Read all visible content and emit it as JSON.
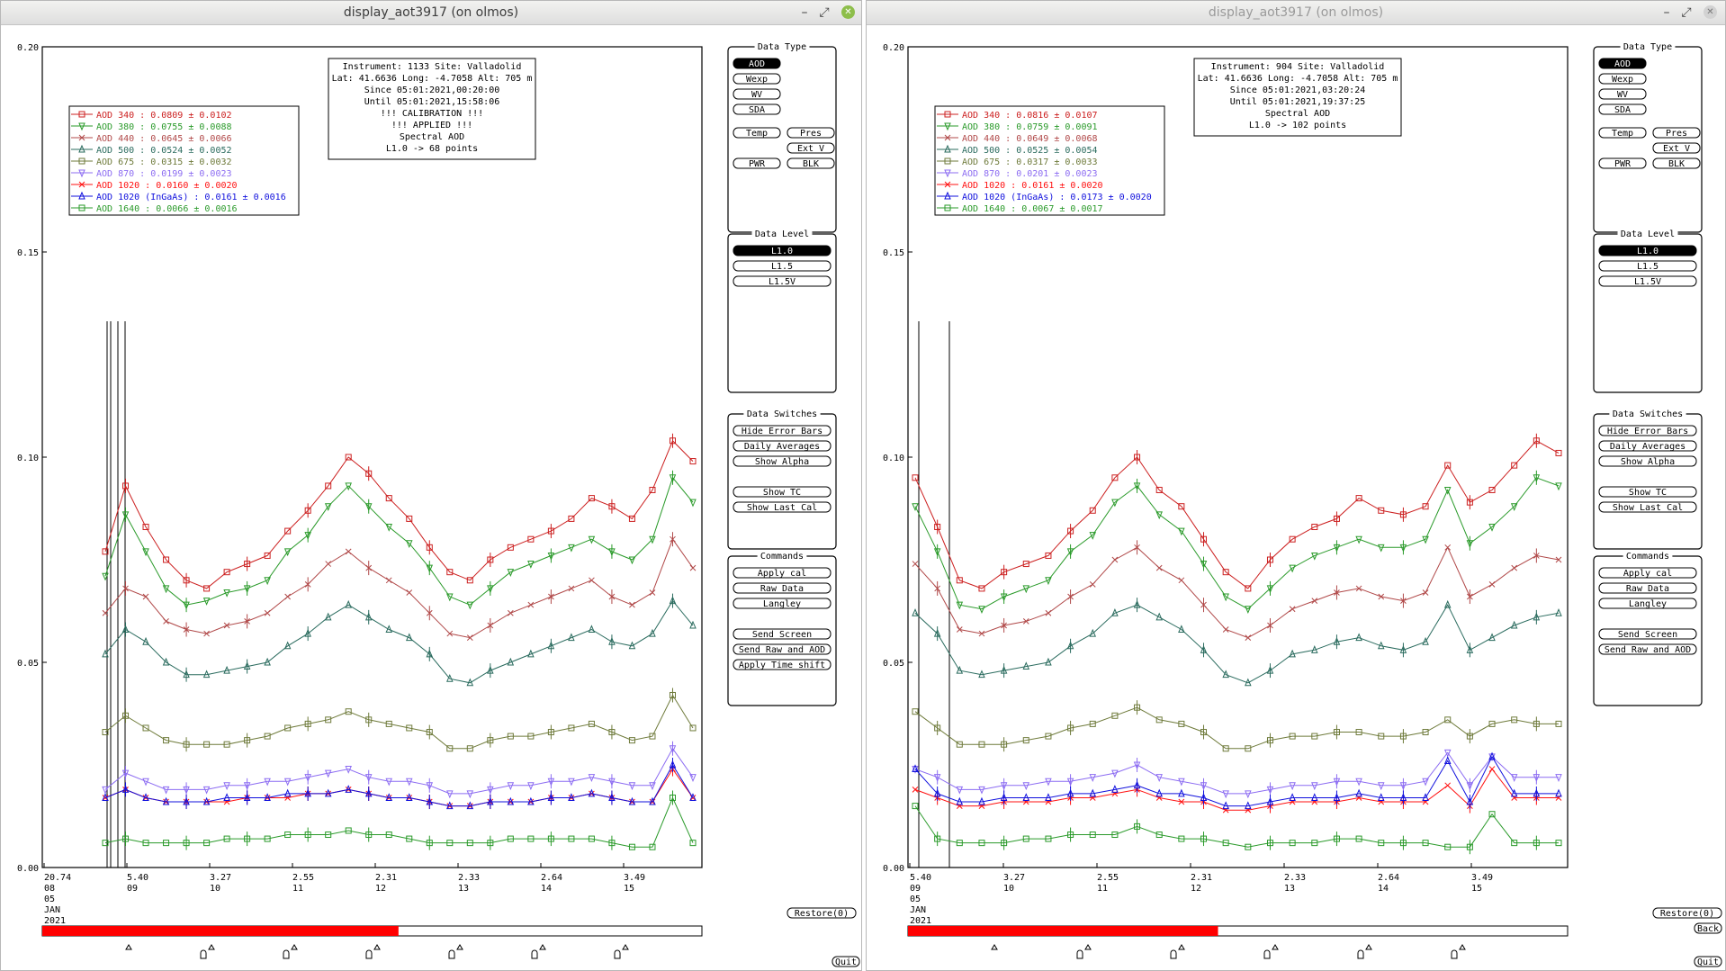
{
  "colors": {
    "aod340": "#cc2020",
    "aod380": "#2a9a2a",
    "aod440": "#b04848",
    "aod500": "#2a6b5e",
    "aod675": "#6e7a3a",
    "aod870": "#8c6cf2",
    "aod1020": "#ff1010",
    "aod1020ingaas": "#1010dd",
    "aod1640": "#2a9a2a",
    "timebar": "#ff0000"
  },
  "windows": [
    {
      "title": "display_aot3917 (on olmos)",
      "titlebar_buttons": {
        "minimize": "–",
        "maximize": "⤢",
        "close": "✕"
      },
      "y_ticks": [
        "0.20",
        "0.15",
        "0.10",
        "0.05",
        "0.00"
      ],
      "x_labels": [
        {
          "v": "20.74",
          "d": "08"
        },
        {
          "v": "5.40",
          "d": "09"
        },
        {
          "v": "3.27",
          "d": "10"
        },
        {
          "v": "2.55",
          "d": "11"
        },
        {
          "v": "2.31",
          "d": "12"
        },
        {
          "v": "2.33",
          "d": "13"
        },
        {
          "v": "2.64",
          "d": "14"
        },
        {
          "v": "3.49",
          "d": "15"
        }
      ],
      "date_lines": [
        "05",
        "JAN",
        "2021"
      ],
      "info_lines": [
        "Instrument: 1133 Site: Valladolid",
        "Lat: 41.6636 Long: -4.7058 Alt: 705 m",
        "Since 05:01:2021,00:20:00",
        "Until 05:01:2021,15:58:06",
        "!!! CALIBRATION !!!",
        "!!!   APPLIED   !!!",
        "Spectral AOD",
        "L1.0 -> 68 points"
      ],
      "legend": [
        {
          "label": "AOD 340   : 0.0809 ± 0.0102"
        },
        {
          "label": "AOD 380   : 0.0755 ± 0.0088"
        },
        {
          "label": "AOD 440   : 0.0645 ± 0.0066"
        },
        {
          "label": "AOD 500   : 0.0524 ± 0.0052"
        },
        {
          "label": "AOD 675   : 0.0315 ± 0.0032"
        },
        {
          "label": "AOD 870   : 0.0199 ± 0.0023"
        },
        {
          "label": "AOD 1020  : 0.0160 ± 0.0020"
        },
        {
          "label": "AOD 1020 (InGaAs)  : 0.0161 ± 0.0016"
        },
        {
          "label": "AOD 1640  : 0.0066 ± 0.0016"
        }
      ],
      "panels": {
        "data_type": {
          "title": "Data Type",
          "aod": "AOD",
          "wexp": "Wexp",
          "wv": "WV",
          "sda": "SDA",
          "temp": "Temp",
          "pres": "Pres",
          "extv": "Ext V",
          "pwr": "PWR",
          "blk": "BLK"
        },
        "data_level": {
          "title": "Data Level",
          "l10": "L1.0",
          "l15": "L1.5",
          "l15v": "L1.5V"
        },
        "data_switches": {
          "title": "Data Switches",
          "hide_err": "Hide Error Bars",
          "daily": "Daily Averages",
          "alpha": "Show Alpha",
          "tc": "Show TC",
          "lastcal": "Show Last Cal"
        },
        "commands": {
          "title": "Commands",
          "apply_cal": "Apply cal",
          "raw": "Raw Data",
          "langley": "Langley",
          "send_screen": "Send Screen",
          "send_raw": "Send Raw and AOD",
          "time_shift": "Apply Time shift"
        }
      },
      "restore": "Restore(0)",
      "quit": "Quit",
      "progress": 0.54
    },
    {
      "title": "display_aot3917 (on olmos)",
      "titlebar_buttons": {
        "minimize": "–",
        "maximize": "⤢",
        "close": "✕"
      },
      "y_ticks": [
        "0.20",
        "0.15",
        "0.10",
        "0.05",
        "0.00"
      ],
      "x_labels": [
        {
          "v": "5.40",
          "d": "09"
        },
        {
          "v": "3.27",
          "d": "10"
        },
        {
          "v": "2.55",
          "d": "11"
        },
        {
          "v": "2.31",
          "d": "12"
        },
        {
          "v": "2.33",
          "d": "13"
        },
        {
          "v": "2.64",
          "d": "14"
        },
        {
          "v": "3.49",
          "d": "15"
        }
      ],
      "date_lines": [
        "05",
        "JAN",
        "2021"
      ],
      "info_lines": [
        "Instrument: 904 Site: Valladolid",
        "Lat: 41.6636 Long: -4.7058 Alt: 705 m",
        "Since 05:01:2021,03:20:24",
        "Until 05:01:2021,19:37:25",
        "Spectral AOD",
        "L1.0 -> 102 points"
      ],
      "legend": [
        {
          "label": "AOD 340   : 0.0816 ± 0.0107"
        },
        {
          "label": "AOD 380   : 0.0759 ± 0.0091"
        },
        {
          "label": "AOD 440   : 0.0649 ± 0.0068"
        },
        {
          "label": "AOD 500   : 0.0525 ± 0.0054"
        },
        {
          "label": "AOD 675   : 0.0317 ± 0.0033"
        },
        {
          "label": "AOD 870   : 0.0201 ± 0.0023"
        },
        {
          "label": "AOD 1020  : 0.0161 ± 0.0020"
        },
        {
          "label": "AOD 1020 (InGaAs)  : 0.0173 ± 0.0020"
        },
        {
          "label": "AOD 1640  : 0.0067 ± 0.0017"
        }
      ],
      "panels": {
        "data_type": {
          "title": "Data Type",
          "aod": "AOD",
          "wexp": "Wexp",
          "wv": "WV",
          "sda": "SDA",
          "temp": "Temp",
          "pres": "Pres",
          "extv": "Ext V",
          "pwr": "PWR",
          "blk": "BLK"
        },
        "data_level": {
          "title": "Data Level",
          "l10": "L1.0",
          "l15": "L1.5",
          "l15v": "L1.5V"
        },
        "data_switches": {
          "title": "Data Switches",
          "hide_err": "Hide Error Bars",
          "daily": "Daily Averages",
          "alpha": "Show Alpha",
          "tc": "Show TC",
          "lastcal": "Show Last Cal"
        },
        "commands": {
          "title": "Commands",
          "apply_cal": "Apply cal",
          "raw": "Raw Data",
          "langley": "Langley",
          "send_screen": "Send Screen",
          "send_raw": "Send Raw and AOD"
        }
      },
      "restore": "Restore(0)",
      "back": "Back",
      "quit": "Quit",
      "progress": 0.47
    }
  ],
  "chart_data": [
    {
      "type": "line",
      "ylim": [
        0,
        0.2
      ],
      "series": [
        {
          "name": "AOD 340",
          "values": [
            0.077,
            0.093,
            0.083,
            0.075,
            0.07,
            0.068,
            0.072,
            0.074,
            0.076,
            0.082,
            0.087,
            0.093,
            0.1,
            0.096,
            0.09,
            0.085,
            0.078,
            0.072,
            0.07,
            0.075,
            0.078,
            0.08,
            0.082,
            0.085,
            0.09,
            0.088,
            0.085,
            0.092,
            0.104,
            0.099
          ]
        },
        {
          "name": "AOD 380",
          "values": [
            0.071,
            0.086,
            0.077,
            0.068,
            0.064,
            0.065,
            0.067,
            0.068,
            0.07,
            0.077,
            0.081,
            0.088,
            0.093,
            0.088,
            0.083,
            0.079,
            0.073,
            0.066,
            0.064,
            0.068,
            0.072,
            0.074,
            0.076,
            0.078,
            0.08,
            0.077,
            0.075,
            0.08,
            0.095,
            0.089
          ]
        },
        {
          "name": "AOD 440",
          "values": [
            0.062,
            0.068,
            0.066,
            0.06,
            0.058,
            0.057,
            0.059,
            0.06,
            0.062,
            0.066,
            0.069,
            0.074,
            0.077,
            0.073,
            0.07,
            0.067,
            0.062,
            0.057,
            0.056,
            0.059,
            0.062,
            0.064,
            0.066,
            0.068,
            0.07,
            0.066,
            0.064,
            0.067,
            0.08,
            0.073
          ]
        },
        {
          "name": "AOD 500",
          "values": [
            0.052,
            0.058,
            0.055,
            0.05,
            0.047,
            0.047,
            0.048,
            0.049,
            0.05,
            0.054,
            0.057,
            0.061,
            0.064,
            0.061,
            0.058,
            0.056,
            0.052,
            0.046,
            0.045,
            0.048,
            0.05,
            0.052,
            0.054,
            0.056,
            0.058,
            0.055,
            0.054,
            0.057,
            0.065,
            0.059
          ]
        },
        {
          "name": "AOD 675",
          "values": [
            0.033,
            0.037,
            0.034,
            0.031,
            0.03,
            0.03,
            0.03,
            0.031,
            0.032,
            0.034,
            0.035,
            0.036,
            0.038,
            0.036,
            0.035,
            0.034,
            0.033,
            0.029,
            0.029,
            0.031,
            0.032,
            0.032,
            0.033,
            0.034,
            0.035,
            0.033,
            0.031,
            0.032,
            0.042,
            0.034
          ]
        },
        {
          "name": "AOD 870",
          "values": [
            0.019,
            0.023,
            0.021,
            0.019,
            0.019,
            0.019,
            0.02,
            0.02,
            0.021,
            0.021,
            0.022,
            0.023,
            0.024,
            0.022,
            0.021,
            0.021,
            0.02,
            0.018,
            0.018,
            0.019,
            0.02,
            0.02,
            0.021,
            0.021,
            0.022,
            0.021,
            0.02,
            0.02,
            0.029,
            0.022
          ]
        },
        {
          "name": "AOD 1020",
          "values": [
            0.017,
            0.019,
            0.017,
            0.016,
            0.016,
            0.016,
            0.016,
            0.017,
            0.017,
            0.017,
            0.018,
            0.018,
            0.019,
            0.018,
            0.017,
            0.017,
            0.016,
            0.015,
            0.015,
            0.016,
            0.016,
            0.016,
            0.017,
            0.017,
            0.018,
            0.017,
            0.016,
            0.016,
            0.024,
            0.017
          ]
        },
        {
          "name": "AOD 1020 (InGaAs)",
          "values": [
            0.017,
            0.019,
            0.017,
            0.016,
            0.016,
            0.016,
            0.017,
            0.017,
            0.017,
            0.018,
            0.018,
            0.018,
            0.019,
            0.018,
            0.017,
            0.017,
            0.016,
            0.015,
            0.015,
            0.016,
            0.016,
            0.016,
            0.017,
            0.017,
            0.018,
            0.017,
            0.016,
            0.016,
            0.025,
            0.017
          ]
        },
        {
          "name": "AOD 1640",
          "values": [
            0.006,
            0.007,
            0.006,
            0.006,
            0.006,
            0.006,
            0.007,
            0.007,
            0.007,
            0.008,
            0.008,
            0.008,
            0.009,
            0.008,
            0.008,
            0.007,
            0.006,
            0.006,
            0.006,
            0.006,
            0.007,
            0.007,
            0.007,
            0.007,
            0.007,
            0.006,
            0.005,
            0.005,
            0.017,
            0.006
          ]
        }
      ]
    },
    {
      "type": "line",
      "ylim": [
        0,
        0.2
      ],
      "series": [
        {
          "name": "AOD 340",
          "values": [
            0.095,
            0.083,
            0.07,
            0.068,
            0.072,
            0.074,
            0.076,
            0.082,
            0.087,
            0.095,
            0.1,
            0.092,
            0.088,
            0.08,
            0.072,
            0.068,
            0.075,
            0.08,
            0.083,
            0.085,
            0.09,
            0.087,
            0.086,
            0.088,
            0.098,
            0.089,
            0.092,
            0.098,
            0.104,
            0.101
          ]
        },
        {
          "name": "AOD 380",
          "values": [
            0.088,
            0.077,
            0.064,
            0.063,
            0.066,
            0.068,
            0.07,
            0.077,
            0.081,
            0.089,
            0.093,
            0.086,
            0.082,
            0.074,
            0.066,
            0.063,
            0.068,
            0.073,
            0.076,
            0.078,
            0.08,
            0.078,
            0.078,
            0.08,
            0.092,
            0.079,
            0.083,
            0.088,
            0.095,
            0.093
          ]
        },
        {
          "name": "AOD 440",
          "values": [
            0.074,
            0.068,
            0.058,
            0.057,
            0.059,
            0.06,
            0.062,
            0.066,
            0.069,
            0.075,
            0.078,
            0.073,
            0.07,
            0.064,
            0.058,
            0.056,
            0.059,
            0.063,
            0.065,
            0.067,
            0.068,
            0.066,
            0.065,
            0.067,
            0.078,
            0.066,
            0.069,
            0.073,
            0.076,
            0.075
          ]
        },
        {
          "name": "AOD 500",
          "values": [
            0.062,
            0.057,
            0.048,
            0.047,
            0.048,
            0.049,
            0.05,
            0.054,
            0.057,
            0.062,
            0.064,
            0.061,
            0.058,
            0.053,
            0.047,
            0.045,
            0.048,
            0.052,
            0.053,
            0.055,
            0.056,
            0.054,
            0.053,
            0.055,
            0.064,
            0.053,
            0.056,
            0.059,
            0.061,
            0.062
          ]
        },
        {
          "name": "AOD 675",
          "values": [
            0.038,
            0.034,
            0.03,
            0.03,
            0.03,
            0.031,
            0.032,
            0.034,
            0.035,
            0.037,
            0.039,
            0.036,
            0.035,
            0.033,
            0.029,
            0.029,
            0.031,
            0.032,
            0.032,
            0.033,
            0.033,
            0.032,
            0.032,
            0.033,
            0.036,
            0.032,
            0.035,
            0.036,
            0.035,
            0.035
          ]
        },
        {
          "name": "AOD 870",
          "values": [
            0.024,
            0.022,
            0.019,
            0.019,
            0.02,
            0.02,
            0.021,
            0.021,
            0.022,
            0.023,
            0.025,
            0.022,
            0.021,
            0.02,
            0.018,
            0.018,
            0.019,
            0.02,
            0.02,
            0.021,
            0.021,
            0.02,
            0.02,
            0.021,
            0.028,
            0.02,
            0.027,
            0.022,
            0.022,
            0.022
          ]
        },
        {
          "name": "AOD 1020",
          "values": [
            0.019,
            0.017,
            0.015,
            0.015,
            0.016,
            0.016,
            0.016,
            0.017,
            0.017,
            0.018,
            0.019,
            0.017,
            0.016,
            0.016,
            0.014,
            0.014,
            0.015,
            0.016,
            0.016,
            0.016,
            0.017,
            0.016,
            0.016,
            0.016,
            0.02,
            0.015,
            0.024,
            0.017,
            0.017,
            0.017
          ]
        },
        {
          "name": "AOD 1020 (InGaAs)",
          "values": [
            0.024,
            0.018,
            0.016,
            0.016,
            0.017,
            0.017,
            0.017,
            0.018,
            0.018,
            0.019,
            0.02,
            0.018,
            0.018,
            0.017,
            0.015,
            0.015,
            0.016,
            0.017,
            0.017,
            0.017,
            0.018,
            0.017,
            0.017,
            0.017,
            0.026,
            0.016,
            0.027,
            0.018,
            0.018,
            0.018
          ]
        },
        {
          "name": "AOD 1640",
          "values": [
            0.015,
            0.007,
            0.006,
            0.006,
            0.006,
            0.007,
            0.007,
            0.008,
            0.008,
            0.008,
            0.01,
            0.008,
            0.007,
            0.007,
            0.006,
            0.005,
            0.006,
            0.006,
            0.006,
            0.007,
            0.007,
            0.006,
            0.006,
            0.006,
            0.005,
            0.005,
            0.013,
            0.006,
            0.006,
            0.006
          ]
        }
      ]
    }
  ]
}
